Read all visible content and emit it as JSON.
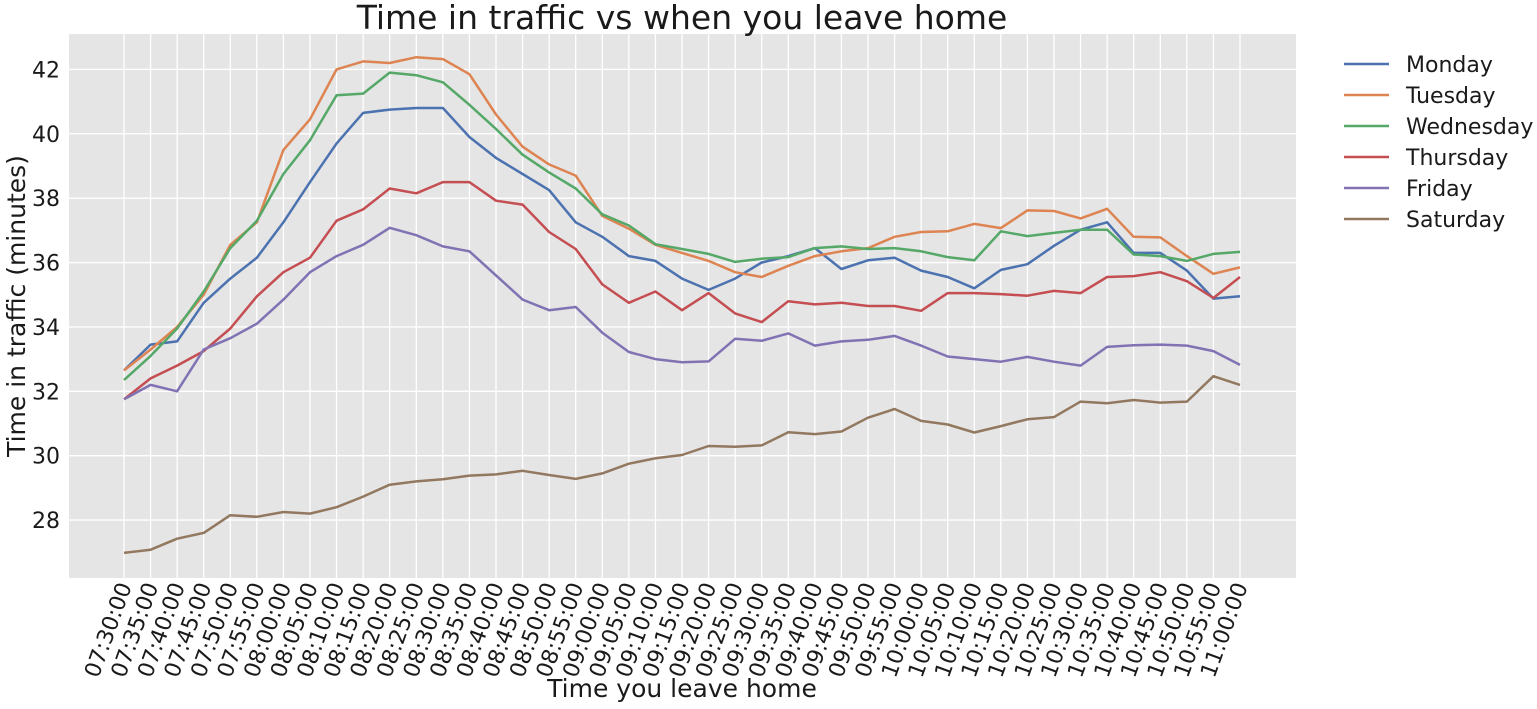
{
  "chart_data": {
    "type": "line",
    "title": "Time in traffic vs when you leave home",
    "xlabel": "Time you leave home",
    "ylabel": "Time in traffic (minutes)",
    "ylim": [
      26.2,
      43.1
    ],
    "yticks": [
      28,
      30,
      32,
      34,
      36,
      38,
      40,
      42
    ],
    "grid": true,
    "legend_position": "outside-right",
    "x": [
      "07:30:00",
      "07:35:00",
      "07:40:00",
      "07:45:00",
      "07:50:00",
      "07:55:00",
      "08:00:00",
      "08:05:00",
      "08:10:00",
      "08:15:00",
      "08:20:00",
      "08:25:00",
      "08:30:00",
      "08:35:00",
      "08:40:00",
      "08:45:00",
      "08:50:00",
      "08:55:00",
      "09:00:00",
      "09:05:00",
      "09:10:00",
      "09:15:00",
      "09:20:00",
      "09:25:00",
      "09:30:00",
      "09:35:00",
      "09:40:00",
      "09:45:00",
      "09:50:00",
      "09:55:00",
      "10:00:00",
      "10:05:00",
      "10:10:00",
      "10:15:00",
      "10:20:00",
      "10:25:00",
      "10:30:00",
      "10:35:00",
      "10:40:00",
      "10:45:00",
      "10:50:00",
      "10:55:00",
      "11:00:00"
    ],
    "series": [
      {
        "name": "Monday",
        "color": "#4c72b0",
        "values": [
          32.65,
          33.45,
          33.55,
          34.75,
          35.5,
          36.15,
          37.25,
          38.5,
          39.7,
          40.65,
          40.75,
          40.8,
          40.8,
          39.9,
          39.25,
          38.75,
          38.25,
          37.25,
          36.8,
          36.2,
          36.05,
          35.5,
          35.15,
          35.5,
          36.0,
          36.2,
          36.45,
          35.8,
          36.07,
          36.15,
          35.75,
          35.55,
          35.2,
          35.77,
          35.95,
          36.52,
          37.02,
          37.25,
          36.3,
          36.3,
          35.75,
          34.88,
          34.95
        ]
      },
      {
        "name": "Tuesday",
        "color": "#dd8452",
        "values": [
          32.65,
          33.3,
          34.0,
          35.0,
          36.55,
          37.25,
          39.5,
          40.45,
          42.0,
          42.25,
          42.2,
          42.38,
          42.32,
          41.85,
          40.6,
          39.6,
          39.05,
          38.7,
          37.45,
          37.05,
          36.55,
          36.3,
          36.05,
          35.7,
          35.55,
          35.9,
          36.2,
          36.35,
          36.45,
          36.8,
          36.95,
          36.97,
          37.2,
          37.07,
          37.62,
          37.6,
          37.37,
          37.67,
          36.8,
          36.78,
          36.2,
          35.65,
          35.85
        ]
      },
      {
        "name": "Wednesday",
        "color": "#55a868",
        "values": [
          32.35,
          33.1,
          33.95,
          35.1,
          36.45,
          37.3,
          38.75,
          39.8,
          41.2,
          41.25,
          41.9,
          41.82,
          41.6,
          40.9,
          40.15,
          39.35,
          38.8,
          38.3,
          37.5,
          37.15,
          36.57,
          36.42,
          36.27,
          36.02,
          36.12,
          36.17,
          36.45,
          36.5,
          36.42,
          36.45,
          36.35,
          36.17,
          36.07,
          36.97,
          36.82,
          36.92,
          37.02,
          37.02,
          36.25,
          36.2,
          36.05,
          36.27,
          36.33
        ]
      },
      {
        "name": "Thursday",
        "color": "#c44e52",
        "values": [
          31.75,
          32.4,
          32.8,
          33.25,
          33.95,
          34.95,
          35.7,
          36.15,
          37.3,
          37.65,
          38.3,
          38.15,
          38.5,
          38.5,
          37.92,
          37.8,
          36.95,
          36.42,
          35.32,
          34.75,
          35.1,
          34.52,
          35.05,
          34.42,
          34.15,
          34.8,
          34.7,
          34.75,
          34.65,
          34.65,
          34.5,
          35.05,
          35.05,
          35.02,
          34.97,
          35.12,
          35.05,
          35.55,
          35.58,
          35.7,
          35.42,
          34.9,
          35.55
        ]
      },
      {
        "name": "Friday",
        "color": "#8172b3",
        "values": [
          31.75,
          32.2,
          32.0,
          33.3,
          33.65,
          34.1,
          34.85,
          35.7,
          36.2,
          36.55,
          37.08,
          36.85,
          36.5,
          36.35,
          35.6,
          34.85,
          34.52,
          34.62,
          33.82,
          33.22,
          33.0,
          32.9,
          32.93,
          33.63,
          33.57,
          33.8,
          33.42,
          33.55,
          33.6,
          33.72,
          33.42,
          33.08,
          33.0,
          32.92,
          33.07,
          32.92,
          32.8,
          33.38,
          33.43,
          33.45,
          33.42,
          33.25,
          32.82
        ]
      },
      {
        "name": "Saturday",
        "color": "#937860",
        "values": [
          26.98,
          27.08,
          27.42,
          27.6,
          28.15,
          28.1,
          28.25,
          28.2,
          28.4,
          28.73,
          29.1,
          29.2,
          29.27,
          29.38,
          29.42,
          29.53,
          29.4,
          29.28,
          29.45,
          29.75,
          29.92,
          30.02,
          30.3,
          30.28,
          30.32,
          30.73,
          30.67,
          30.75,
          31.18,
          31.45,
          31.08,
          30.97,
          30.72,
          30.92,
          31.13,
          31.2,
          31.68,
          31.63,
          31.73,
          31.65,
          31.68,
          32.47,
          32.2
        ]
      }
    ]
  }
}
